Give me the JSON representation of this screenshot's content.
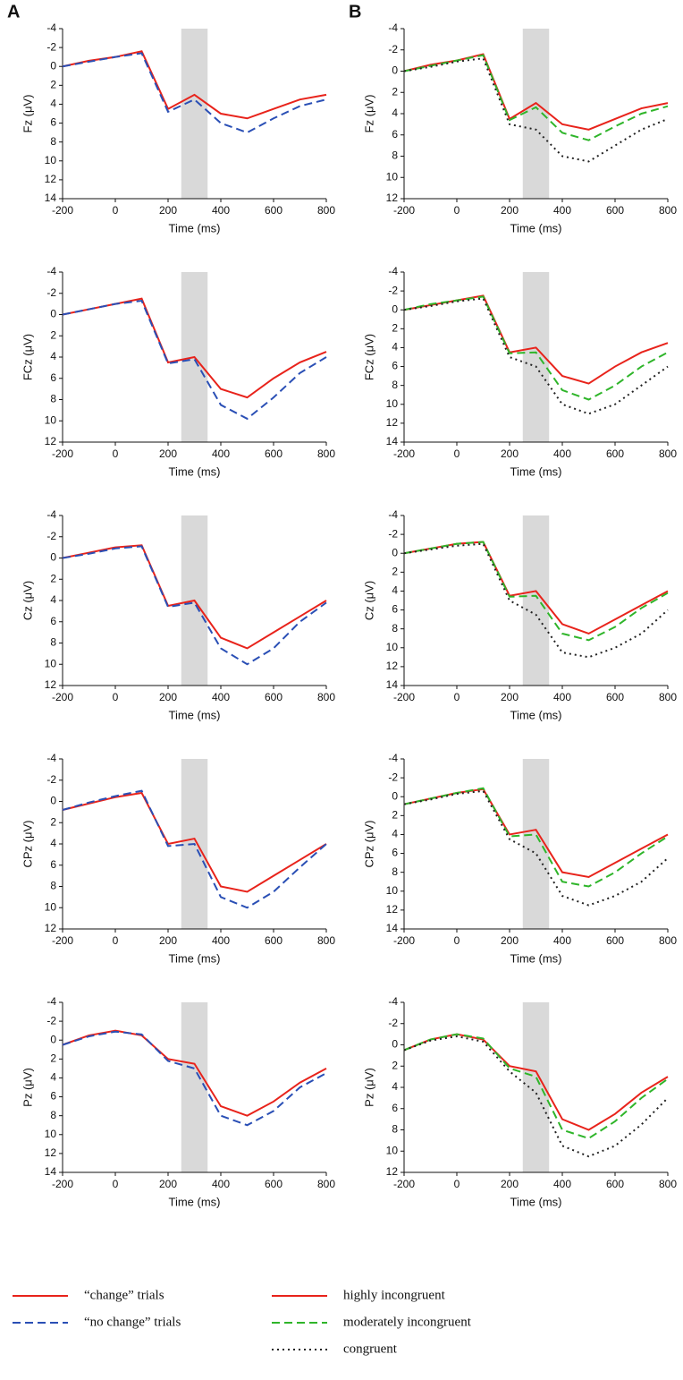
{
  "panel_labels": [
    "A",
    "B"
  ],
  "chart_data": [
    {
      "type": "line",
      "ylabel": "Fz (μV)",
      "xlabel": "Time (ms)",
      "x": [
        -200,
        -100,
        0,
        100,
        200,
        300,
        400,
        500,
        600,
        700,
        800
      ],
      "xlim": [
        -200,
        800
      ],
      "xticks": [
        -200,
        0,
        200,
        400,
        600,
        800
      ],
      "ylim": [
        -4,
        14
      ],
      "yticks": [
        -4,
        -2,
        0,
        2,
        4,
        6,
        8,
        10,
        12,
        14
      ],
      "y_inverted": true,
      "shaded": [
        250,
        350
      ],
      "series": [
        {
          "name": "“change” trials",
          "color": "#e8231b",
          "dash": "solid",
          "values": [
            0,
            -0.6,
            -1,
            -1.6,
            4.5,
            3,
            5,
            5.5,
            4.5,
            3.5,
            3
          ]
        },
        {
          "name": "“no change” trials",
          "color": "#2a4fb5",
          "dash": "dashed",
          "values": [
            0,
            -0.5,
            -1,
            -1.4,
            4.8,
            3.5,
            6,
            7,
            5.5,
            4.2,
            3.5
          ]
        }
      ]
    },
    {
      "type": "line",
      "ylabel": "Fz (μV)",
      "xlabel": "Time (ms)",
      "x": [
        -200,
        -100,
        0,
        100,
        200,
        300,
        400,
        500,
        600,
        700,
        800
      ],
      "xlim": [
        -200,
        800
      ],
      "xticks": [
        -200,
        0,
        200,
        400,
        600,
        800
      ],
      "ylim": [
        -4,
        12
      ],
      "yticks": [
        -4,
        -2,
        0,
        2,
        4,
        6,
        8,
        10,
        12
      ],
      "y_inverted": true,
      "shaded": [
        250,
        350
      ],
      "series": [
        {
          "name": "highly incongruent",
          "color": "#e8231b",
          "dash": "solid",
          "values": [
            0,
            -0.6,
            -1,
            -1.6,
            4.5,
            3,
            5,
            5.5,
            4.5,
            3.5,
            3
          ]
        },
        {
          "name": "moderately incongruent",
          "color": "#2fb52a",
          "dash": "dashed",
          "values": [
            0,
            -0.5,
            -1,
            -1.5,
            4.6,
            3.4,
            5.8,
            6.5,
            5.2,
            4,
            3.3
          ]
        },
        {
          "name": "congruent",
          "color": "#222222",
          "dash": "dotted",
          "values": [
            0,
            -0.4,
            -0.9,
            -1.2,
            5,
            5.5,
            8,
            8.5,
            7,
            5.5,
            4.5
          ]
        }
      ]
    },
    {
      "type": "line",
      "ylabel": "FCz (μV)",
      "xlabel": "Time (ms)",
      "x": [
        -200,
        -100,
        0,
        100,
        200,
        300,
        400,
        500,
        600,
        700,
        800
      ],
      "xlim": [
        -200,
        800
      ],
      "xticks": [
        -200,
        0,
        200,
        400,
        600,
        800
      ],
      "ylim": [
        -4,
        12
      ],
      "yticks": [
        -4,
        -2,
        0,
        2,
        4,
        6,
        8,
        10,
        12
      ],
      "y_inverted": true,
      "shaded": [
        250,
        350
      ],
      "series": [
        {
          "name": "“change” trials",
          "color": "#e8231b",
          "dash": "solid",
          "values": [
            0,
            -0.5,
            -1,
            -1.5,
            4.5,
            4,
            7,
            7.8,
            6,
            4.5,
            3.5
          ]
        },
        {
          "name": "“no change” trials",
          "color": "#2a4fb5",
          "dash": "dashed",
          "values": [
            0,
            -0.5,
            -1,
            -1.3,
            4.6,
            4.2,
            8.5,
            9.8,
            7.8,
            5.5,
            4
          ]
        }
      ]
    },
    {
      "type": "line",
      "ylabel": "FCz (μV)",
      "xlabel": "Time (ms)",
      "x": [
        -200,
        -100,
        0,
        100,
        200,
        300,
        400,
        500,
        600,
        700,
        800
      ],
      "xlim": [
        -200,
        800
      ],
      "xticks": [
        -200,
        0,
        200,
        400,
        600,
        800
      ],
      "ylim": [
        -4,
        14
      ],
      "yticks": [
        -4,
        -2,
        0,
        2,
        4,
        6,
        8,
        10,
        12,
        14
      ],
      "y_inverted": true,
      "shaded": [
        250,
        350
      ],
      "series": [
        {
          "name": "highly incongruent",
          "color": "#e8231b",
          "dash": "solid",
          "values": [
            0,
            -0.5,
            -1,
            -1.5,
            4.5,
            4,
            7,
            7.8,
            6,
            4.5,
            3.5
          ]
        },
        {
          "name": "moderately incongruent",
          "color": "#2fb52a",
          "dash": "dashed",
          "values": [
            0,
            -0.6,
            -1,
            -1.4,
            4.6,
            4.5,
            8.5,
            9.5,
            8,
            6,
            4.5
          ]
        },
        {
          "name": "congruent",
          "color": "#222222",
          "dash": "dotted",
          "values": [
            0,
            -0.4,
            -0.9,
            -1.2,
            5,
            6,
            10,
            11,
            10,
            8,
            6
          ]
        }
      ]
    },
    {
      "type": "line",
      "ylabel": "Cz (μV)",
      "xlabel": "Time (ms)",
      "x": [
        -200,
        -100,
        0,
        100,
        200,
        300,
        400,
        500,
        600,
        700,
        800
      ],
      "xlim": [
        -200,
        800
      ],
      "xticks": [
        -200,
        0,
        200,
        400,
        600,
        800
      ],
      "ylim": [
        -4,
        12
      ],
      "yticks": [
        -4,
        -2,
        0,
        2,
        4,
        6,
        8,
        10,
        12
      ],
      "y_inverted": true,
      "shaded": [
        250,
        350
      ],
      "series": [
        {
          "name": "“change” trials",
          "color": "#e8231b",
          "dash": "solid",
          "values": [
            0,
            -0.5,
            -1,
            -1.2,
            4.5,
            4,
            7.5,
            8.5,
            7,
            5.5,
            4
          ]
        },
        {
          "name": "“no change” trials",
          "color": "#2a4fb5",
          "dash": "dashed",
          "values": [
            0,
            -0.4,
            -0.9,
            -1.1,
            4.6,
            4.2,
            8.5,
            10,
            8.5,
            6,
            4.2
          ]
        }
      ]
    },
    {
      "type": "line",
      "ylabel": "Cz (μV)",
      "xlabel": "Time (ms)",
      "x": [
        -200,
        -100,
        0,
        100,
        200,
        300,
        400,
        500,
        600,
        700,
        800
      ],
      "xlim": [
        -200,
        800
      ],
      "xticks": [
        -200,
        0,
        200,
        400,
        600,
        800
      ],
      "ylim": [
        -4,
        14
      ],
      "yticks": [
        -4,
        -2,
        0,
        2,
        4,
        6,
        8,
        10,
        12,
        14
      ],
      "y_inverted": true,
      "shaded": [
        250,
        350
      ],
      "series": [
        {
          "name": "highly incongruent",
          "color": "#e8231b",
          "dash": "solid",
          "values": [
            0,
            -0.5,
            -1,
            -1.2,
            4.5,
            4,
            7.5,
            8.5,
            7,
            5.5,
            4
          ]
        },
        {
          "name": "moderately incongruent",
          "color": "#2fb52a",
          "dash": "dashed",
          "values": [
            0,
            -0.5,
            -1,
            -1.2,
            4.6,
            4.5,
            8.5,
            9.2,
            7.8,
            5.8,
            4.2
          ]
        },
        {
          "name": "congruent",
          "color": "#222222",
          "dash": "dotted",
          "values": [
            0,
            -0.4,
            -0.8,
            -1,
            5,
            6.5,
            10.5,
            11,
            10,
            8.5,
            6
          ]
        }
      ]
    },
    {
      "type": "line",
      "ylabel": "CPz (μV)",
      "xlabel": "Time (ms)",
      "x": [
        -200,
        -100,
        0,
        100,
        200,
        300,
        400,
        500,
        600,
        700,
        800
      ],
      "xlim": [
        -200,
        800
      ],
      "xticks": [
        -200,
        0,
        200,
        400,
        600,
        800
      ],
      "ylim": [
        -4,
        12
      ],
      "yticks": [
        -4,
        -2,
        0,
        2,
        4,
        6,
        8,
        10,
        12
      ],
      "y_inverted": true,
      "shaded": [
        250,
        350
      ],
      "series": [
        {
          "name": "“change” trials",
          "color": "#e8231b",
          "dash": "solid",
          "values": [
            0.8,
            0.2,
            -0.4,
            -0.8,
            4,
            3.5,
            8,
            8.5,
            7,
            5.5,
            4
          ]
        },
        {
          "name": "“no change” trials",
          "color": "#2a4fb5",
          "dash": "dashed",
          "values": [
            0.8,
            0.1,
            -0.5,
            -1,
            4.2,
            4,
            9,
            10,
            8.5,
            6.2,
            4
          ]
        }
      ]
    },
    {
      "type": "line",
      "ylabel": "CPz (μV)",
      "xlabel": "Time (ms)",
      "x": [
        -200,
        -100,
        0,
        100,
        200,
        300,
        400,
        500,
        600,
        700,
        800
      ],
      "xlim": [
        -200,
        800
      ],
      "xticks": [
        -200,
        0,
        200,
        400,
        600,
        800
      ],
      "ylim": [
        -4,
        14
      ],
      "yticks": [
        -4,
        -2,
        0,
        2,
        4,
        6,
        8,
        10,
        12,
        14
      ],
      "y_inverted": true,
      "shaded": [
        250,
        350
      ],
      "series": [
        {
          "name": "highly incongruent",
          "color": "#e8231b",
          "dash": "solid",
          "values": [
            0.8,
            0.2,
            -0.4,
            -0.8,
            4,
            3.5,
            8,
            8.5,
            7,
            5.5,
            4
          ]
        },
        {
          "name": "moderately incongruent",
          "color": "#2fb52a",
          "dash": "dashed",
          "values": [
            0.8,
            0.2,
            -0.4,
            -0.9,
            4.2,
            4,
            9,
            9.5,
            8,
            6,
            4.2
          ]
        },
        {
          "name": "congruent",
          "color": "#222222",
          "dash": "dotted",
          "values": [
            0.8,
            0.3,
            -0.3,
            -0.6,
            4.5,
            6,
            10.5,
            11.5,
            10.5,
            9,
            6.5
          ]
        }
      ]
    },
    {
      "type": "line",
      "ylabel": "Pz (μV)",
      "xlabel": "Time (ms)",
      "x": [
        -200,
        -100,
        0,
        100,
        200,
        300,
        400,
        500,
        600,
        700,
        800
      ],
      "xlim": [
        -200,
        800
      ],
      "xticks": [
        -200,
        0,
        200,
        400,
        600,
        800
      ],
      "ylim": [
        -4,
        14
      ],
      "yticks": [
        -4,
        -2,
        0,
        2,
        4,
        6,
        8,
        10,
        12,
        14
      ],
      "y_inverted": true,
      "shaded": [
        250,
        350
      ],
      "series": [
        {
          "name": "“change” trials",
          "color": "#e8231b",
          "dash": "solid",
          "values": [
            0.5,
            -0.5,
            -1,
            -0.5,
            2,
            2.5,
            7,
            8,
            6.5,
            4.5,
            3
          ]
        },
        {
          "name": "“no change” trials",
          "color": "#2a4fb5",
          "dash": "dashed",
          "values": [
            0.5,
            -0.4,
            -0.9,
            -0.6,
            2.2,
            3,
            8,
            9,
            7.5,
            5,
            3.5
          ]
        }
      ]
    },
    {
      "type": "line",
      "ylabel": "Pz (μV)",
      "xlabel": "Time (ms)",
      "x": [
        -200,
        -100,
        0,
        100,
        200,
        300,
        400,
        500,
        600,
        700,
        800
      ],
      "xlim": [
        -200,
        800
      ],
      "xticks": [
        -200,
        0,
        200,
        400,
        600,
        800
      ],
      "ylim": [
        -4,
        12
      ],
      "yticks": [
        -4,
        -2,
        0,
        2,
        4,
        6,
        8,
        10,
        12
      ],
      "y_inverted": true,
      "shaded": [
        250,
        350
      ],
      "series": [
        {
          "name": "highly incongruent",
          "color": "#e8231b",
          "dash": "solid",
          "values": [
            0.5,
            -0.5,
            -1,
            -0.5,
            2,
            2.5,
            7,
            8,
            6.5,
            4.5,
            3
          ]
        },
        {
          "name": "moderately incongruent",
          "color": "#2fb52a",
          "dash": "dashed",
          "values": [
            0.5,
            -0.5,
            -1,
            -0.6,
            2.2,
            3,
            8,
            8.8,
            7.2,
            5,
            3.2
          ]
        },
        {
          "name": "congruent",
          "color": "#222222",
          "dash": "dotted",
          "values": [
            0.5,
            -0.4,
            -0.8,
            -0.3,
            2.5,
            4.5,
            9.5,
            10.5,
            9.5,
            7.5,
            5
          ]
        }
      ]
    }
  ]
}
